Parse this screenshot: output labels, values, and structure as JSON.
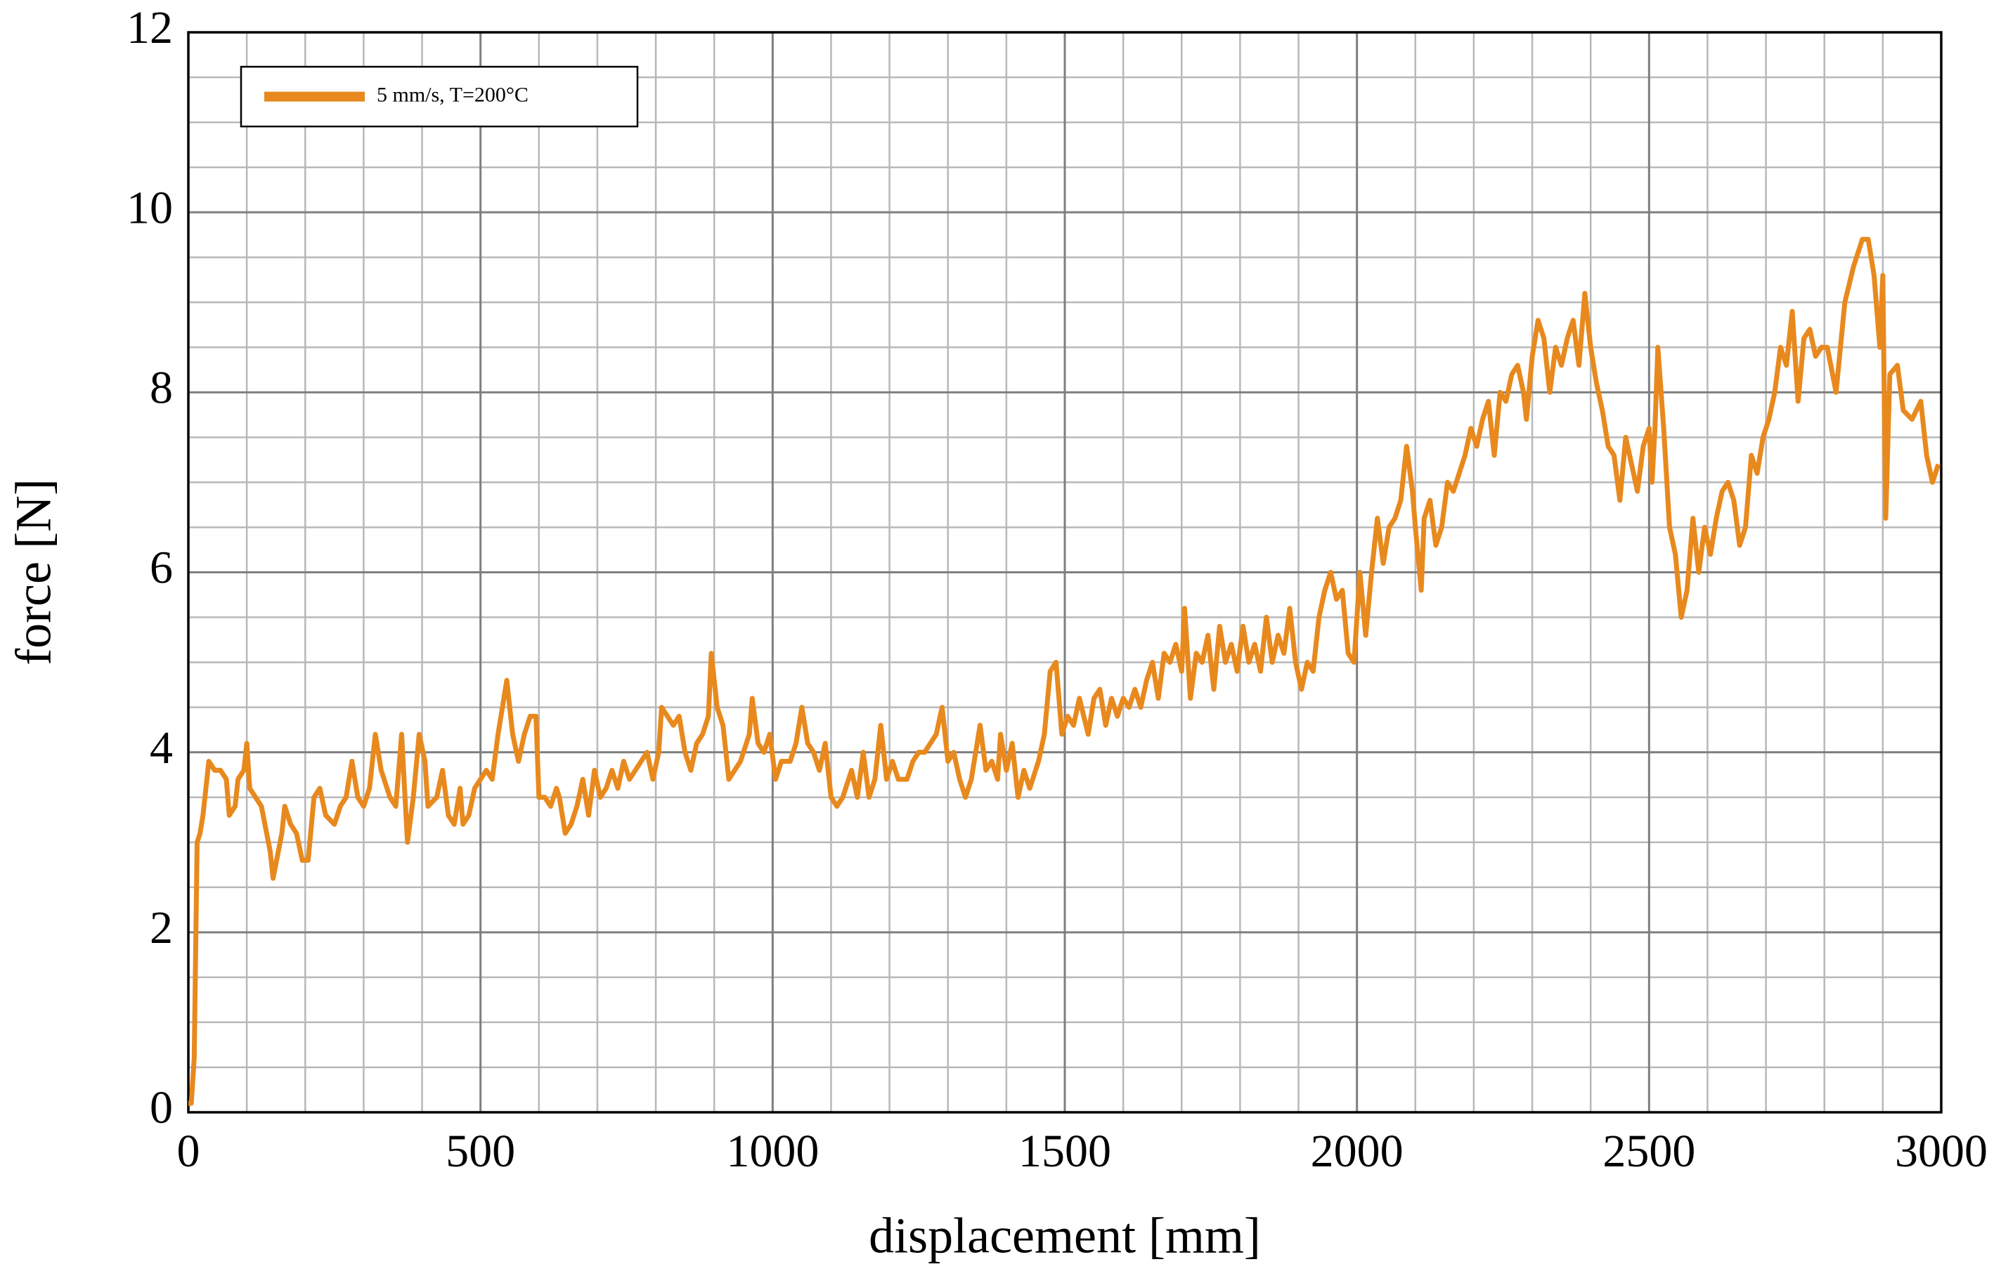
{
  "chart_data": {
    "type": "line",
    "xlabel": "displacement [mm]",
    "ylabel": "force [N]",
    "xlim": [
      0,
      3000
    ],
    "xticks": [
      0,
      500,
      1000,
      1500,
      2000,
      2500,
      3000
    ],
    "ylim": [
      0,
      12
    ],
    "yticks": [
      0,
      2,
      4,
      6,
      8,
      10,
      12
    ],
    "grid": true,
    "legend": "upper left",
    "x": [
      0,
      5,
      10,
      15,
      20,
      25,
      35,
      45,
      55,
      65,
      70,
      80,
      85,
      95,
      100,
      105,
      115,
      125,
      140,
      145,
      160,
      165,
      175,
      185,
      195,
      205,
      215,
      225,
      235,
      250,
      260,
      270,
      280,
      290,
      300,
      310,
      320,
      330,
      345,
      355,
      365,
      370,
      375,
      385,
      395,
      405,
      410,
      425,
      435,
      445,
      455,
      465,
      470,
      480,
      490,
      500,
      510,
      520,
      530,
      540,
      545,
      555,
      565,
      575,
      585,
      595,
      600,
      610,
      620,
      630,
      635,
      645,
      655,
      665,
      675,
      685,
      695,
      705,
      715,
      725,
      735,
      745,
      755,
      765,
      775,
      785,
      795,
      805,
      810,
      820,
      830,
      840,
      850,
      860,
      870,
      880,
      890,
      895,
      905,
      915,
      925,
      935,
      945,
      960,
      965,
      975,
      985,
      995,
      1005,
      1015,
      1030,
      1040,
      1050,
      1060,
      1070,
      1080,
      1090,
      1100,
      1110,
      1120,
      1135,
      1145,
      1155,
      1165,
      1175,
      1185,
      1195,
      1205,
      1215,
      1230,
      1240,
      1250,
      1260,
      1270,
      1280,
      1290,
      1300,
      1310,
      1320,
      1330,
      1340,
      1355,
      1365,
      1375,
      1385,
      1390,
      1400,
      1410,
      1420,
      1430,
      1440,
      1455,
      1465,
      1475,
      1485,
      1495,
      1505,
      1515,
      1525,
      1540,
      1550,
      1560,
      1570,
      1580,
      1590,
      1600,
      1610,
      1620,
      1630,
      1640,
      1650,
      1660,
      1670,
      1680,
      1690,
      1700,
      1705,
      1715,
      1725,
      1735,
      1745,
      1755,
      1765,
      1775,
      1785,
      1795,
      1805,
      1815,
      1825,
      1835,
      1845,
      1855,
      1865,
      1875,
      1885,
      1895,
      1905,
      1915,
      1925,
      1935,
      1945,
      1955,
      1965,
      1975,
      1985,
      1995,
      2005,
      2015,
      2025,
      2035,
      2045,
      2055,
      2065,
      2075,
      2085,
      2095,
      2100,
      2110,
      2115,
      2125,
      2135,
      2145,
      2155,
      2165,
      2175,
      2185,
      2195,
      2205,
      2215,
      2225,
      2235,
      2245,
      2255,
      2265,
      2275,
      2285,
      2290,
      2300,
      2310,
      2320,
      2330,
      2340,
      2350,
      2360,
      2370,
      2380,
      2390,
      2400,
      2410,
      2420,
      2430,
      2440,
      2450,
      2460,
      2470,
      2480,
      2490,
      2500,
      2505,
      2510,
      2515,
      2525,
      2535,
      2545,
      2555,
      2565,
      2575,
      2585,
      2595,
      2605,
      2615,
      2625,
      2635,
      2645,
      2655,
      2665,
      2675,
      2685,
      2695,
      2705,
      2715,
      2725,
      2735,
      2745,
      2755,
      2765,
      2775,
      2785,
      2795,
      2805,
      2820,
      2835,
      2850,
      2865,
      2875,
      2885,
      2895,
      2900,
      2905,
      2912,
      2925,
      2935,
      2950,
      2965,
      2975,
      2985,
      2995
    ],
    "series": [
      {
        "name": "5 mm/s, T=200°C",
        "color": "#e8891e",
        "values": [
          0.1,
          0.1,
          0.6,
          3.0,
          3.1,
          3.3,
          3.9,
          3.8,
          3.8,
          3.7,
          3.3,
          3.4,
          3.7,
          3.8,
          4.1,
          3.6,
          3.5,
          3.4,
          2.9,
          2.6,
          3.1,
          3.4,
          3.2,
          3.1,
          2.8,
          2.8,
          3.5,
          3.6,
          3.3,
          3.2,
          3.4,
          3.5,
          3.9,
          3.5,
          3.4,
          3.6,
          4.2,
          3.8,
          3.5,
          3.4,
          4.2,
          3.6,
          3.0,
          3.5,
          4.2,
          3.9,
          3.4,
          3.5,
          3.8,
          3.3,
          3.2,
          3.6,
          3.2,
          3.3,
          3.6,
          3.7,
          3.8,
          3.7,
          4.2,
          4.6,
          4.8,
          4.2,
          3.9,
          4.2,
          4.4,
          4.4,
          3.5,
          3.5,
          3.4,
          3.6,
          3.5,
          3.1,
          3.2,
          3.4,
          3.7,
          3.3,
          3.8,
          3.5,
          3.6,
          3.8,
          3.6,
          3.9,
          3.7,
          3.8,
          3.9,
          4.0,
          3.7,
          4.0,
          4.5,
          4.4,
          4.3,
          4.4,
          4.0,
          3.8,
          4.1,
          4.2,
          4.4,
          5.1,
          4.5,
          4.3,
          3.7,
          3.8,
          3.9,
          4.2,
          4.6,
          4.1,
          4.0,
          4.2,
          3.7,
          3.9,
          3.9,
          4.1,
          4.5,
          4.1,
          4.0,
          3.8,
          4.1,
          3.5,
          3.4,
          3.5,
          3.8,
          3.5,
          4.0,
          3.5,
          3.7,
          4.3,
          3.7,
          3.9,
          3.7,
          3.7,
          3.9,
          4.0,
          4.0,
          4.1,
          4.2,
          4.5,
          3.9,
          4.0,
          3.7,
          3.5,
          3.7,
          4.3,
          3.8,
          3.9,
          3.7,
          4.2,
          3.8,
          4.1,
          3.5,
          3.8,
          3.6,
          3.9,
          4.2,
          4.9,
          5.0,
          4.2,
          4.4,
          4.3,
          4.6,
          4.2,
          4.6,
          4.7,
          4.3,
          4.6,
          4.4,
          4.6,
          4.5,
          4.7,
          4.5,
          4.8,
          5.0,
          4.6,
          5.1,
          5.0,
          5.2,
          4.9,
          5.6,
          4.6,
          5.1,
          5.0,
          5.3,
          4.7,
          5.4,
          5.0,
          5.2,
          4.9,
          5.4,
          5.0,
          5.2,
          4.9,
          5.5,
          5.0,
          5.3,
          5.1,
          5.6,
          5.0,
          4.7,
          5.0,
          4.9,
          5.5,
          5.8,
          6.0,
          5.7,
          5.8,
          5.1,
          5.0,
          6.0,
          5.3,
          6.0,
          6.6,
          6.1,
          6.5,
          6.6,
          6.8,
          7.4,
          6.9,
          6.5,
          5.8,
          6.6,
          6.8,
          6.3,
          6.5,
          7.0,
          6.9,
          7.1,
          7.3,
          7.6,
          7.4,
          7.7,
          7.9,
          7.3,
          8.0,
          7.9,
          8.2,
          8.3,
          8.0,
          7.7,
          8.4,
          8.8,
          8.6,
          8.0,
          8.5,
          8.3,
          8.6,
          8.8,
          8.3,
          9.1,
          8.5,
          8.1,
          7.8,
          7.4,
          7.3,
          6.8,
          7.5,
          7.2,
          6.9,
          7.4,
          7.6,
          7.0,
          7.6,
          8.5,
          7.6,
          6.5,
          6.2,
          5.5,
          5.8,
          6.6,
          6.0,
          6.5,
          6.2,
          6.6,
          6.9,
          7.0,
          6.8,
          6.3,
          6.5,
          7.3,
          7.1,
          7.5,
          7.7,
          8.0,
          8.5,
          8.3,
          8.9,
          7.9,
          8.6,
          8.7,
          8.4,
          8.5,
          8.5,
          8.0,
          9.0,
          9.4,
          9.7,
          9.7,
          9.3,
          8.5,
          9.3,
          6.6,
          8.2,
          8.3,
          7.8,
          7.7,
          7.9,
          7.3,
          7.0,
          7.2
        ]
      }
    ]
  }
}
